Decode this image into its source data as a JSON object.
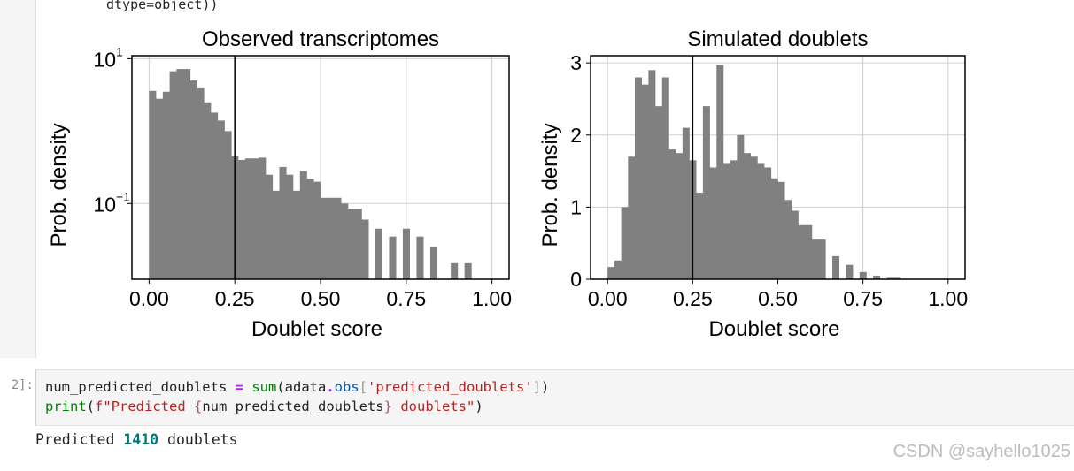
{
  "notebook": {
    "truncated_output": "dtype=object))",
    "code_cell": {
      "prompt": "2]:",
      "line1": {
        "var": "num_predicted_doublets",
        "eq": " = ",
        "fn": "sum",
        "open": "(",
        "obj": "adata",
        "dot": ".",
        "attr": "obs",
        "lb": "[",
        "key": "'predicted_doublets'",
        "rb": "]",
        "close": ")"
      },
      "line2": {
        "fn": "print",
        "open": "(",
        "fstr_start": "f\"Predicted ",
        "brace_open": "{",
        "var": "num_predicted_doublets",
        "brace_close": "}",
        "fstr_end": " doublets\"",
        "close": ")"
      }
    },
    "output": {
      "prefix": "Predicted ",
      "count": "1410",
      "suffix": " doublets"
    },
    "watermark": "CSDN @sayhello1025"
  },
  "chart_data": [
    {
      "type": "bar",
      "title": "Observed transcriptomes",
      "xlabel": "Doublet score",
      "ylabel": "Prob. density",
      "yscale": "log",
      "xlim": [
        -0.05,
        1.05
      ],
      "ylim": [
        0.009,
        11
      ],
      "xticks": [
        0,
        0.25,
        0.5,
        0.75,
        1.0
      ],
      "xtick_labels": [
        "0.00",
        "0.25",
        "0.50",
        "0.75",
        "1.00"
      ],
      "yticks": [
        10,
        0.1
      ],
      "ytick_labels": [
        {
          "base": "10",
          "exp": "1"
        },
        {
          "base": "10",
          "exp": "−1"
        }
      ],
      "grid": true,
      "threshold": 0.25,
      "bin_width": 0.02,
      "bins_start": 0.0,
      "values": [
        3.6,
        2.8,
        3.5,
        6.7,
        7.2,
        7.2,
        5.0,
        3.9,
        2.5,
        1.8,
        1.4,
        1.0,
        0.45,
        0.4,
        0.42,
        0.42,
        0.43,
        0.25,
        0.15,
        0.32,
        0.25,
        0.15,
        0.28,
        0.22,
        0.2,
        0.12,
        0.12,
        0.12,
        0.1,
        0.085,
        0.085,
        0.06,
        0.0,
        0.045,
        0.0,
        0.035,
        0.0,
        0.045,
        0.0,
        0.035,
        0.0,
        0.025,
        0.0,
        0.0,
        0.015,
        0.0,
        0.015,
        0.0,
        0.0,
        0.0,
        0.0,
        0.0,
        0.0,
        0.0,
        0.0,
        0.0,
        0.0,
        0.0,
        0.0,
        0.0,
        0.0,
        0.0,
        0.0,
        0.0,
        0.0,
        0.0,
        0.0,
        0.0,
        0.0,
        0.0,
        0.0,
        0.0,
        0.0,
        0.0,
        0.0,
        0.0,
        0.0,
        0.0,
        0.0,
        0.0,
        0.0,
        0.0,
        0.0,
        0.0,
        0.0,
        0.0,
        0.0,
        0.0,
        0.0,
        0.0,
        0.0,
        0.0,
        0.0,
        0.0,
        0.0,
        0.0,
        0.0,
        0.0,
        0.0,
        0.0,
        0.0
      ],
      "color": "#808080"
    },
    {
      "type": "bar",
      "title": "Simulated doublets",
      "xlabel": "Doublet score",
      "ylabel": "Prob. density",
      "yscale": "linear",
      "xlim": [
        -0.05,
        1.05
      ],
      "ylim": [
        0,
        3.1
      ],
      "xticks": [
        0,
        0.25,
        0.5,
        0.75,
        1.0
      ],
      "xtick_labels": [
        "0.00",
        "0.25",
        "0.50",
        "0.75",
        "1.00"
      ],
      "yticks": [
        0,
        1,
        2,
        3
      ],
      "ytick_labels": [
        "0",
        "1",
        "2",
        "3"
      ],
      "grid": true,
      "threshold": 0.25,
      "bin_width": 0.02,
      "bins_start": 0.0,
      "values": [
        0.17,
        0.26,
        1.0,
        1.7,
        2.8,
        2.7,
        2.9,
        2.4,
        2.8,
        1.8,
        1.75,
        2.1,
        1.65,
        1.2,
        2.4,
        1.55,
        2.97,
        1.6,
        1.65,
        2.0,
        1.75,
        1.7,
        1.6,
        1.55,
        1.4,
        1.35,
        1.1,
        0.95,
        0.75,
        0.75,
        0.55,
        0.55,
        0.0,
        0.32,
        0.0,
        0.2,
        0.0,
        0.1,
        0.0,
        0.05,
        0.0,
        0.02,
        0.02,
        0.0,
        0.0,
        0.0,
        0.0,
        0.0,
        0.0,
        0.0
      ],
      "color": "#808080"
    }
  ]
}
